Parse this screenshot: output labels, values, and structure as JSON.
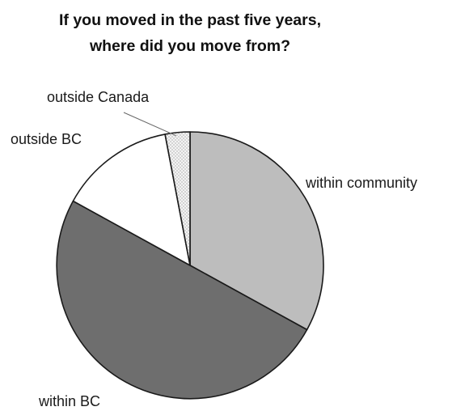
{
  "chart_data": {
    "type": "pie",
    "title_lines": [
      "If you moved in the past five years,",
      "where did you move from?"
    ],
    "slices": [
      {
        "label": "within community",
        "value": 33,
        "pattern": "light-gray"
      },
      {
        "label": "within BC",
        "value": 50,
        "pattern": "dark-gray"
      },
      {
        "label": "outside BC",
        "value": 14,
        "pattern": "white"
      },
      {
        "label": "outside Canada",
        "value": 3,
        "pattern": "checker"
      }
    ],
    "colors": {
      "light-gray": "#bdbdbd",
      "dark-gray": "#6e6e6e",
      "white": "#ffffff",
      "checker_a": "#d4d4d4",
      "checker_b": "#f4f4f4",
      "outline": "#1a1a1a"
    }
  }
}
